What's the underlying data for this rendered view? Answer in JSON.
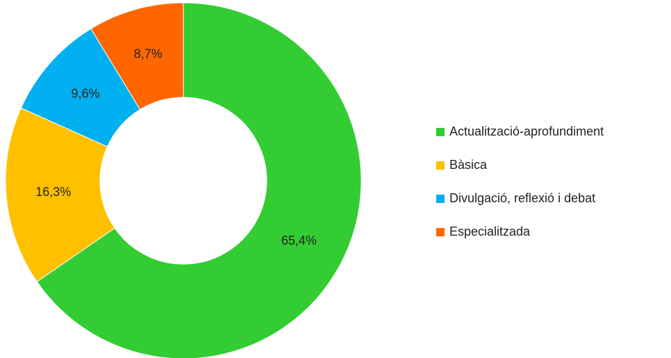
{
  "chart_data": {
    "type": "donut",
    "categories": [
      "Actualització-aprofundiment",
      "Bàsica",
      "Divulgació, reflexió i debat",
      "Especialitzada"
    ],
    "values": [
      65.4,
      16.3,
      9.6,
      8.7
    ],
    "value_labels": [
      "65,4%",
      "16,3%",
      "9,6%",
      "8,7%"
    ],
    "colors": [
      "#33cc33",
      "#ffc000",
      "#00b0f0",
      "#ff6600"
    ],
    "legend": "right"
  }
}
